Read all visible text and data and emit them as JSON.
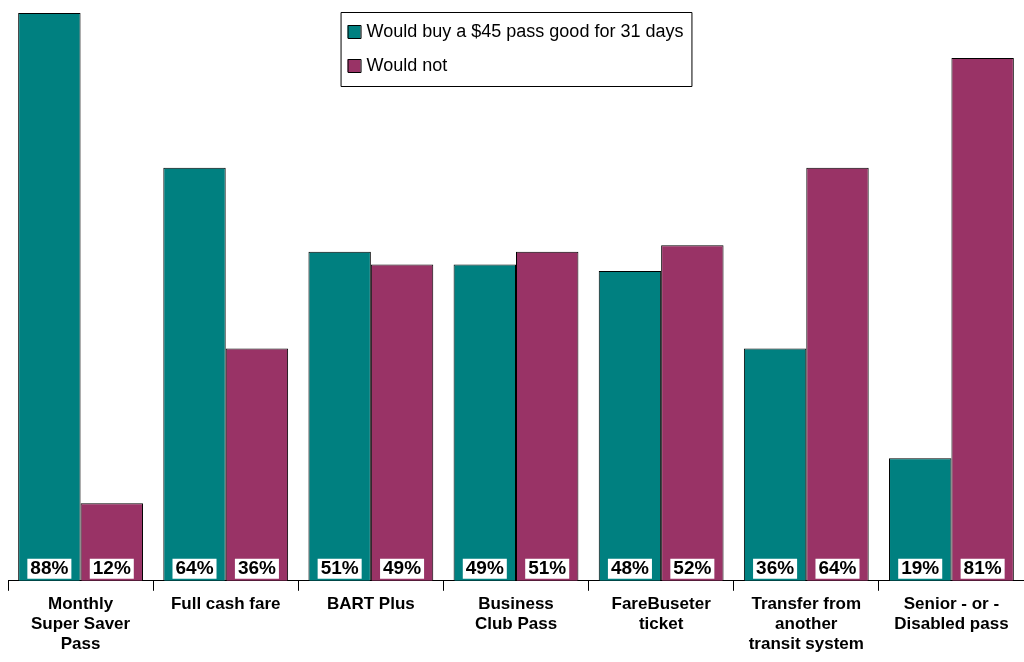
{
  "chart_data": {
    "type": "bar",
    "categories": [
      "Monthly Super Saver Pass",
      "Full cash fare",
      "BART Plus",
      "Business Club Pass",
      "FareBuseter ticket",
      "Transfer from another transit system",
      "Senior - or - Disabled pass"
    ],
    "series": [
      {
        "name": "Would buy a $45 pass good for 31 days",
        "color": "#008080",
        "values": [
          88,
          64,
          51,
          49,
          48,
          36,
          19
        ],
        "value_labels": [
          "88%",
          "64%",
          "51%",
          "49%",
          "48%",
          "36%",
          "19%"
        ]
      },
      {
        "name": "Would not",
        "color": "#993366",
        "values": [
          12,
          36,
          49,
          51,
          52,
          64,
          81
        ],
        "value_labels": [
          "12%",
          "36%",
          "49%",
          "51%",
          "52%",
          "64%",
          "81%"
        ]
      }
    ],
    "legend": "top"
  }
}
